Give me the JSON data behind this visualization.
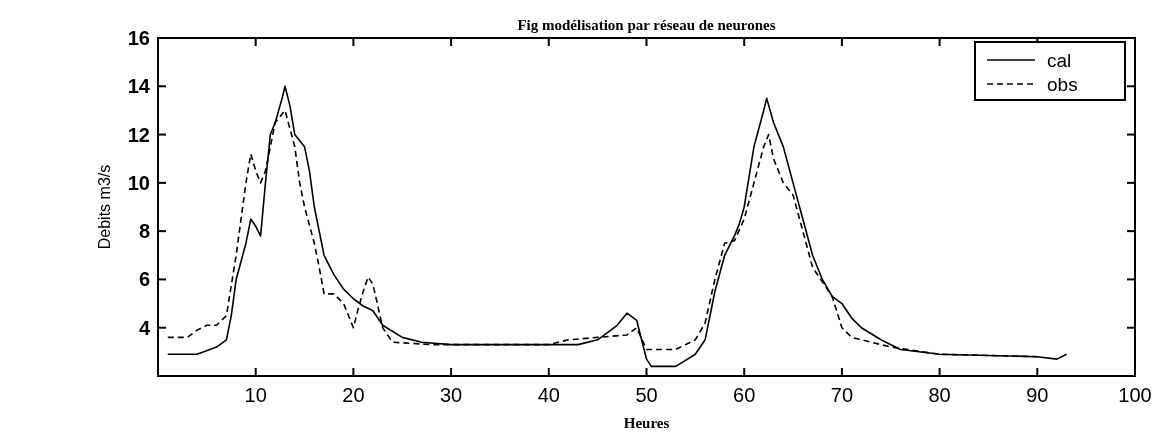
{
  "chart_data": {
    "type": "line",
    "title": "Fig modélisation par réseau de neurones",
    "xlabel": "Heures",
    "ylabel": "Debits m3/s",
    "xlim": [
      0,
      100
    ],
    "ylim": [
      2,
      16
    ],
    "xticks": [
      {
        "value": 0,
        "label": null
      },
      10,
      20,
      30,
      40,
      50,
      60,
      70,
      80,
      90,
      100
    ],
    "yticks": [
      {
        "value": 2,
        "label": null
      },
      4,
      6,
      8,
      10,
      12,
      14,
      16
    ],
    "legend": "top right",
    "series": [
      {
        "name": "cal",
        "color": "#000000",
        "line_style": "solid",
        "x": [
          1,
          4,
          6,
          7,
          7.5,
          8,
          9,
          9.5,
          10,
          10.5,
          11,
          11.5,
          12,
          12.7,
          13,
          13.5,
          14,
          15,
          15.5,
          16,
          16.5,
          17,
          18,
          19,
          20,
          21,
          22,
          23,
          25,
          27,
          30,
          40,
          43,
          45,
          47,
          48,
          49,
          49.5,
          50,
          50.5,
          53,
          55,
          56,
          57,
          58,
          59,
          59.5,
          60,
          61,
          62,
          62.3,
          63,
          64,
          65,
          66,
          67,
          68,
          69,
          70,
          71,
          72,
          74,
          76,
          80,
          90,
          92,
          93
        ],
        "values": [
          2.9,
          2.9,
          3.2,
          3.5,
          4.5,
          6,
          7.5,
          8.5,
          8.2,
          7.8,
          10,
          12,
          12.5,
          13.5,
          14,
          13.2,
          12,
          11.5,
          10.5,
          9,
          8,
          7,
          6.2,
          5.6,
          5.2,
          4.9,
          4.7,
          4.1,
          3.6,
          3.4,
          3.3,
          3.3,
          3.3,
          3.5,
          4.1,
          4.6,
          4.3,
          3.5,
          2.7,
          2.4,
          2.4,
          2.9,
          3.5,
          5.5,
          7,
          7.8,
          8.3,
          9,
          11.5,
          13,
          13.5,
          12.5,
          11.5,
          10,
          8.5,
          7,
          6,
          5.3,
          5,
          4.4,
          4,
          3.5,
          3.1,
          2.9,
          2.8,
          2.7,
          2.9
        ]
      },
      {
        "name": "obs",
        "color": "#000000",
        "line_style": "dashed",
        "x": [
          1,
          3,
          4,
          5,
          6,
          7,
          8,
          9,
          9.5,
          10,
          10.5,
          11,
          12,
          13,
          14,
          14.5,
          15,
          16,
          16.5,
          17,
          18,
          19,
          20,
          20.5,
          21,
          21.5,
          22,
          23,
          24,
          28,
          40,
          42,
          45,
          48,
          49,
          50,
          53,
          55,
          56,
          57,
          58,
          59,
          60,
          61,
          62,
          62.5,
          63,
          64,
          65,
          66,
          67,
          68,
          69,
          70,
          71,
          72,
          75,
          80,
          90
        ],
        "values": [
          3.6,
          3.6,
          3.9,
          4.1,
          4.1,
          4.5,
          7,
          10,
          11.2,
          10.5,
          10,
          10.5,
          12.5,
          13,
          11.5,
          10,
          9,
          7.5,
          6.5,
          5.4,
          5.4,
          5,
          4,
          4.8,
          5.5,
          6.1,
          5.8,
          4,
          3.4,
          3.3,
          3.3,
          3.5,
          3.6,
          3.7,
          4,
          3.1,
          3.1,
          3.5,
          4.2,
          6,
          7.5,
          7.6,
          8.5,
          10,
          11.5,
          12,
          11,
          10,
          9.5,
          8,
          6.5,
          5.9,
          5.3,
          4,
          3.6,
          3.5,
          3.2,
          2.9,
          2.8
        ]
      }
    ]
  }
}
